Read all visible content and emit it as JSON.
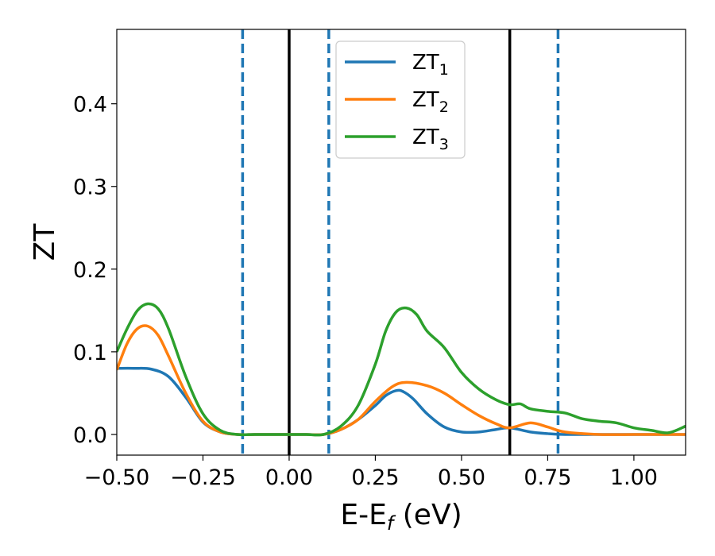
{
  "chart_data": {
    "type": "line",
    "xlabel_main": "E-E",
    "xlabel_sub": "f",
    "xlabel_unit": " (eV)",
    "ylabel": "ZT",
    "xlim": [
      -0.5,
      1.15
    ],
    "ylim": [
      -0.025,
      0.49
    ],
    "xticks": [
      -0.5,
      -0.25,
      0.0,
      0.25,
      0.5,
      0.75,
      1.0
    ],
    "xtick_labels": [
      "−0.50",
      "−0.25",
      "0.00",
      "0.25",
      "0.50",
      "0.75",
      "1.00"
    ],
    "yticks": [
      0.0,
      0.1,
      0.2,
      0.3,
      0.4
    ],
    "ytick_labels": [
      "0.0",
      "0.1",
      "0.2",
      "0.3",
      "0.4"
    ],
    "vlines_solid": [
      0.0,
      0.64
    ],
    "vlines_dashed": [
      -0.135,
      0.115,
      0.78
    ],
    "colors": {
      "dashed_vline": "#1f77b4",
      "solid_vline": "#000000"
    },
    "legend_position": "upper-center",
    "series": [
      {
        "name": "ZT",
        "sub": "1",
        "color": "#1f77b4",
        "x": [
          -0.5,
          -0.45,
          -0.4,
          -0.35,
          -0.3,
          -0.25,
          -0.2,
          -0.15,
          -0.1,
          -0.05,
          0.0,
          0.05,
          0.1,
          0.15,
          0.2,
          0.25,
          0.28,
          0.31,
          0.33,
          0.36,
          0.4,
          0.45,
          0.5,
          0.55,
          0.6,
          0.64,
          0.7,
          0.75,
          0.8,
          0.9,
          1.0,
          1.15
        ],
        "values": [
          0.08,
          0.08,
          0.079,
          0.07,
          0.045,
          0.015,
          0.003,
          0.0,
          0.0,
          0.0,
          0.0,
          0.0,
          0.0,
          0.006,
          0.018,
          0.035,
          0.047,
          0.053,
          0.052,
          0.043,
          0.025,
          0.009,
          0.003,
          0.003,
          0.006,
          0.008,
          0.003,
          0.001,
          0.0,
          0.0,
          0.0,
          0.0
        ]
      },
      {
        "name": "ZT",
        "sub": "2",
        "color": "#ff7f0e",
        "x": [
          -0.5,
          -0.47,
          -0.44,
          -0.41,
          -0.38,
          -0.35,
          -0.3,
          -0.25,
          -0.2,
          -0.15,
          -0.1,
          -0.05,
          0.0,
          0.05,
          0.1,
          0.15,
          0.2,
          0.25,
          0.3,
          0.34,
          0.4,
          0.45,
          0.5,
          0.55,
          0.6,
          0.64,
          0.7,
          0.75,
          0.8,
          0.9,
          1.0,
          1.15
        ],
        "values": [
          0.078,
          0.11,
          0.128,
          0.131,
          0.12,
          0.095,
          0.05,
          0.016,
          0.003,
          0.0,
          0.0,
          0.0,
          0.0,
          0.0,
          0.0,
          0.006,
          0.018,
          0.04,
          0.058,
          0.063,
          0.059,
          0.05,
          0.036,
          0.023,
          0.013,
          0.008,
          0.014,
          0.009,
          0.003,
          0.0,
          0.0,
          0.0
        ]
      },
      {
        "name": "ZT",
        "sub": "3",
        "color": "#2ca02c",
        "x": [
          -0.5,
          -0.47,
          -0.44,
          -0.41,
          -0.38,
          -0.35,
          -0.3,
          -0.25,
          -0.2,
          -0.15,
          -0.1,
          -0.05,
          0.0,
          0.05,
          0.1,
          0.15,
          0.2,
          0.25,
          0.28,
          0.31,
          0.34,
          0.37,
          0.4,
          0.45,
          0.5,
          0.55,
          0.6,
          0.64,
          0.67,
          0.7,
          0.75,
          0.8,
          0.85,
          0.9,
          0.95,
          1.0,
          1.05,
          1.1,
          1.15
        ],
        "values": [
          0.1,
          0.128,
          0.15,
          0.158,
          0.152,
          0.128,
          0.07,
          0.025,
          0.005,
          0.0,
          0.0,
          0.0,
          0.0,
          0.0,
          0.0,
          0.01,
          0.035,
          0.085,
          0.125,
          0.148,
          0.153,
          0.145,
          0.125,
          0.105,
          0.075,
          0.055,
          0.042,
          0.036,
          0.037,
          0.031,
          0.028,
          0.026,
          0.019,
          0.016,
          0.014,
          0.008,
          0.005,
          0.002,
          0.01
        ]
      }
    ]
  }
}
